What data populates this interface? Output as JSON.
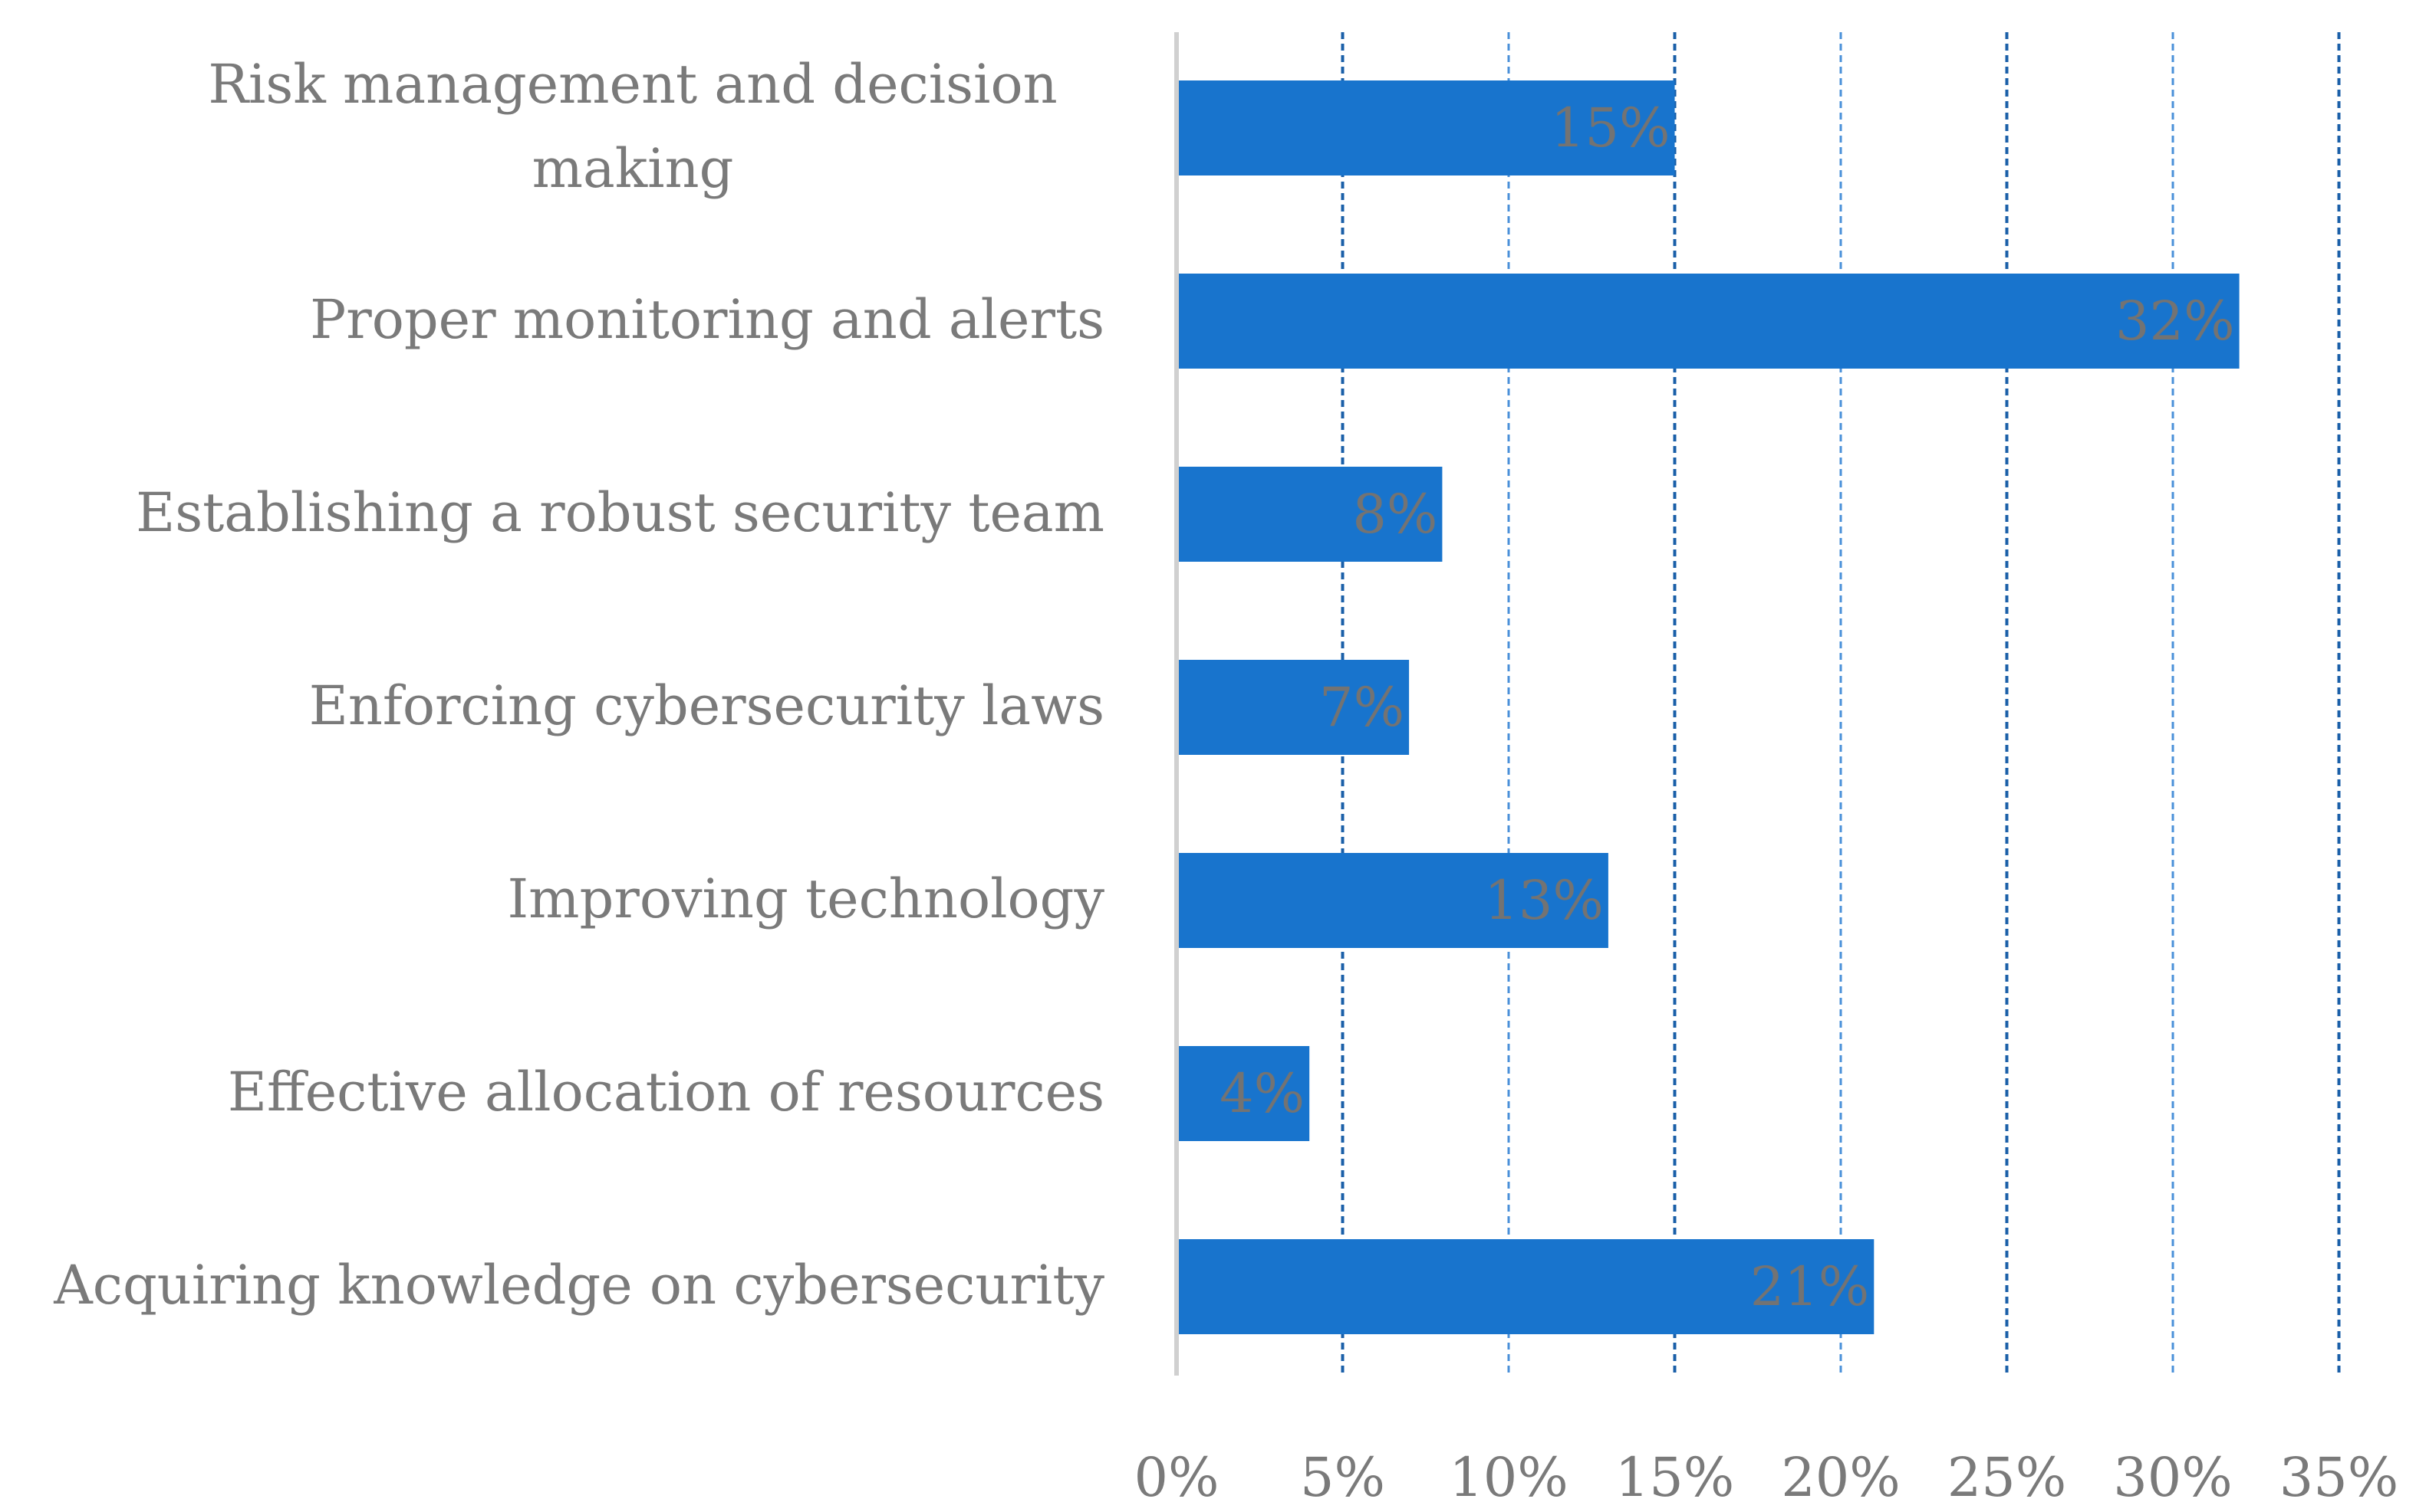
{
  "chart_data": {
    "type": "bar",
    "orientation": "horizontal",
    "categories": [
      "Risk management  and decision making",
      "Proper monitoring  and alerts",
      "Establishing a robust security team",
      "Enforcing cybersecurity laws",
      "Improving technology",
      "Effective allocation of resources",
      "Acquiring knowledge on cybersecurity"
    ],
    "category_lines": [
      [
        "Risk management  and decision",
        "making"
      ],
      [
        "Proper monitoring  and alerts"
      ],
      [
        "Establishing a robust security team"
      ],
      [
        "Enforcing cybersecurity laws"
      ],
      [
        "Improving technology"
      ],
      [
        "Effective allocation of resources"
      ],
      [
        "Acquiring knowledge on cybersecurity"
      ]
    ],
    "values": [
      15,
      32,
      8,
      7,
      13,
      4,
      21
    ],
    "data_labels": [
      "15%",
      "32%",
      "8%",
      "7%",
      "13%",
      "4%",
      "21%"
    ],
    "x_ticks": [
      0,
      5,
      10,
      15,
      20,
      25,
      30,
      35
    ],
    "x_tick_labels": [
      "0%",
      "5%",
      "10%",
      "15%",
      "20%",
      "25%",
      "30%",
      "35%"
    ],
    "xlim": [
      0,
      35
    ],
    "unit": "%",
    "grid": "vertical dashed",
    "title": "",
    "xlabel": "",
    "ylabel": ""
  },
  "colors": {
    "bar": "#1874cd",
    "grid_major": "#1a5fa8",
    "grid_minor": "#4a90d9",
    "axis": "#d0d0d0",
    "text": "#7a7a7a"
  }
}
